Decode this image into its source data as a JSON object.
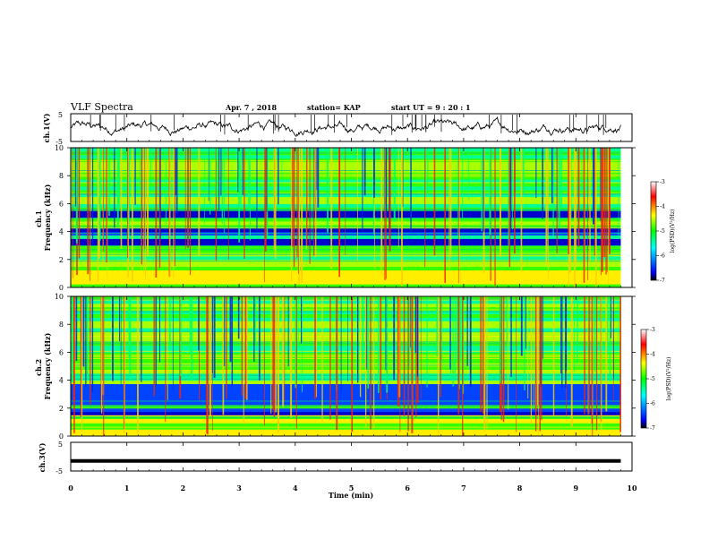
{
  "header": {
    "title": "VLF Spectra",
    "date": "Apr. 7 , 2018",
    "station": "station= KAP",
    "start": "start UT = 9 : 20 : 1"
  },
  "chart_data": [
    {
      "type": "line",
      "panel": "ch1-waveform",
      "ylabel": "ch.1(V)",
      "ylim": [
        -5,
        5
      ],
      "yticks": [
        "5",
        "-5"
      ],
      "x_range_min": [
        0,
        9.8
      ],
      "color": "#000000"
    },
    {
      "type": "heatmap",
      "panel": "ch1-spectrogram",
      "ylabel": "ch.1\nFrequency (kHz)",
      "ylim": [
        0,
        10
      ],
      "yticks": [
        "0",
        "2",
        "4",
        "6",
        "8",
        "10"
      ],
      "x_range_min": [
        0,
        9.8
      ],
      "colorbar": {
        "label": "log(PSD)(V²/Hz)",
        "range": [
          -7,
          -3
        ],
        "ticks": [
          "-3",
          "-4",
          "-5",
          "-6",
          "-7"
        ],
        "colors": [
          "#000000",
          "#0000ff",
          "#00ffff",
          "#00ff00",
          "#ffff00",
          "#ff0000",
          "#ffffff"
        ]
      },
      "blue_bands_khz": [
        [
          2.95,
          3.35
        ],
        [
          3.75,
          4.2
        ],
        [
          5.0,
          5.3
        ]
      ]
    },
    {
      "type": "heatmap",
      "panel": "ch2-spectrogram",
      "ylabel": "ch.2\nFrequency (kHz)",
      "ylim": [
        0,
        10
      ],
      "yticks": [
        "0",
        "2",
        "4",
        "6",
        "8",
        "10"
      ],
      "x_range_min": [
        0,
        9.8
      ],
      "colorbar": {
        "label": "log(PSD)(V²/Hz)",
        "range": [
          -7,
          -3
        ],
        "ticks": [
          "-3",
          "-4",
          "-5",
          "-6",
          "-7"
        ],
        "colors": [
          "#000000",
          "#0000ff",
          "#00ffff",
          "#00ff00",
          "#ffff00",
          "#ff0000",
          "#ffffff"
        ]
      },
      "blue_bands_khz": [
        [
          2.2,
          3.6
        ],
        [
          1.5,
          1.9
        ]
      ]
    },
    {
      "type": "line",
      "panel": "ch3-waveform",
      "ylabel": "ch.3(V)",
      "ylim": [
        -5,
        5
      ],
      "yticks": [
        "5",
        "-5"
      ],
      "level": -1.5,
      "x_range_min": [
        0,
        9.8
      ],
      "color": "#000000"
    }
  ],
  "xaxis": {
    "label": "Time (min)",
    "ticks": [
      "0",
      "1",
      "2",
      "3",
      "4",
      "5",
      "6",
      "7",
      "8",
      "9",
      "10"
    ]
  }
}
